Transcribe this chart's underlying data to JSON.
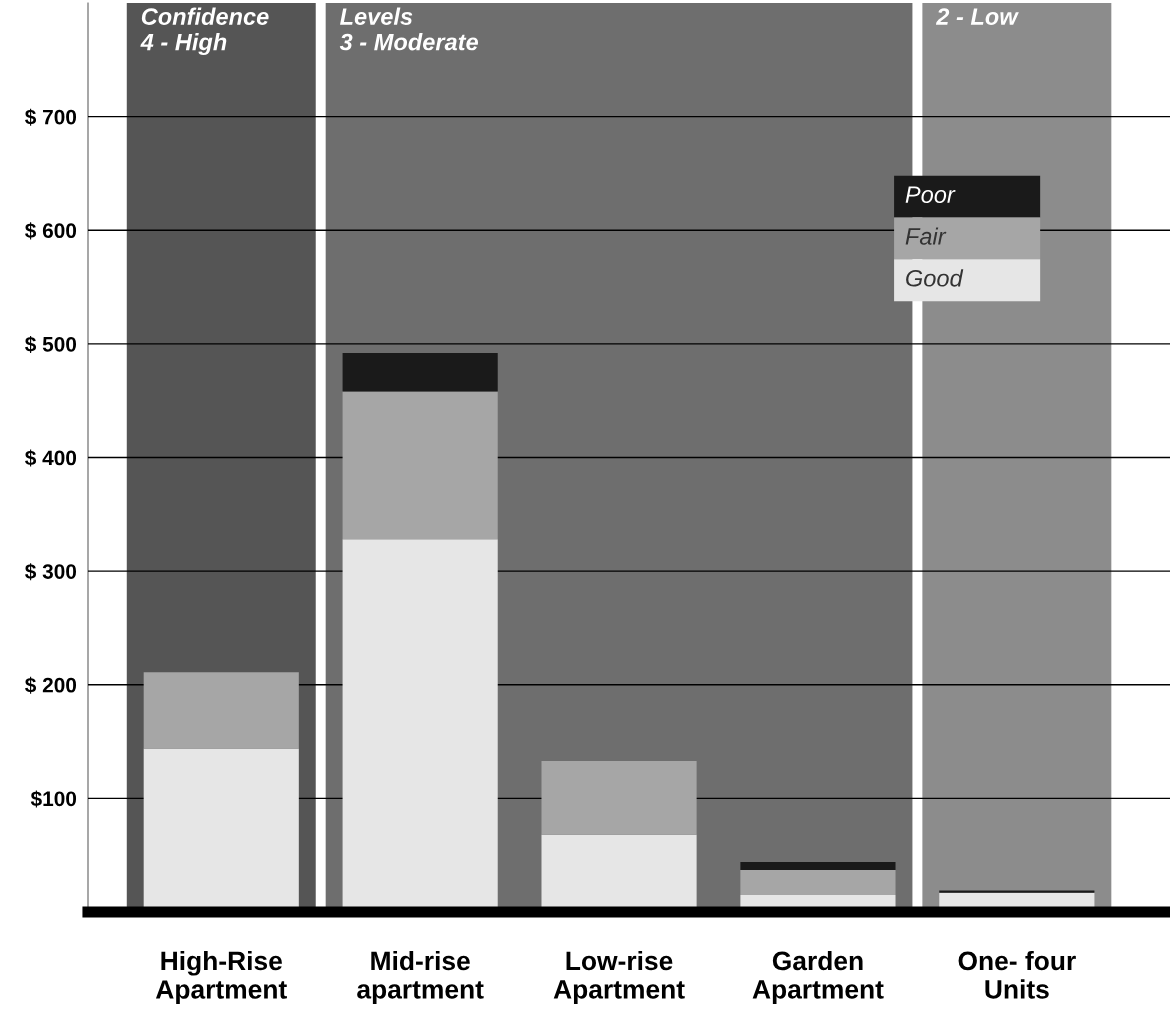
{
  "chart_data": {
    "type": "bar",
    "stacked": true,
    "categories": [
      "High-Rise\nApartment",
      "Mid-rise\napartment",
      "Low-rise\nApartment",
      "Garden\nApartment",
      "One- four\nUnits"
    ],
    "series": [
      {
        "name": "Good",
        "color": "#e6e6e6",
        "values": [
          144,
          328,
          68,
          15,
          17
        ]
      },
      {
        "name": "Fair",
        "color": "#a6a6a6",
        "values": [
          67,
          130,
          65,
          22,
          0
        ]
      },
      {
        "name": "Poor",
        "color": "#1a1a1a",
        "values": [
          0,
          34,
          0,
          7,
          2
        ]
      }
    ],
    "ylim": [
      0,
      800
    ],
    "yticks": [
      {
        "value": 100,
        "label": "$100"
      },
      {
        "value": 200,
        "label": "$ 200"
      },
      {
        "value": 300,
        "label": "$ 300"
      },
      {
        "value": 400,
        "label": "$ 400"
      },
      {
        "value": 500,
        "label": "$ 500"
      },
      {
        "value": 600,
        "label": "$ 600"
      },
      {
        "value": 700,
        "label": "$ 700"
      }
    ],
    "grid": "y",
    "legend": "top right",
    "bands": [
      {
        "axis": "x",
        "from": "High-Rise\nApartment",
        "to": "High-Rise\nApartment",
        "label": "Confidence\n4 - High",
        "color": "#555555"
      },
      {
        "axis": "x",
        "from": "Mid-rise\napartment",
        "to": "Garden\nApartment",
        "label": "Levels\n3 - Moderate",
        "color": "#6e6e6e"
      },
      {
        "axis": "x",
        "from": "One- four\nUnits",
        "to": "One- four\nUnits",
        "label": "2 - Low",
        "color": "#8c8c8c"
      }
    ]
  }
}
